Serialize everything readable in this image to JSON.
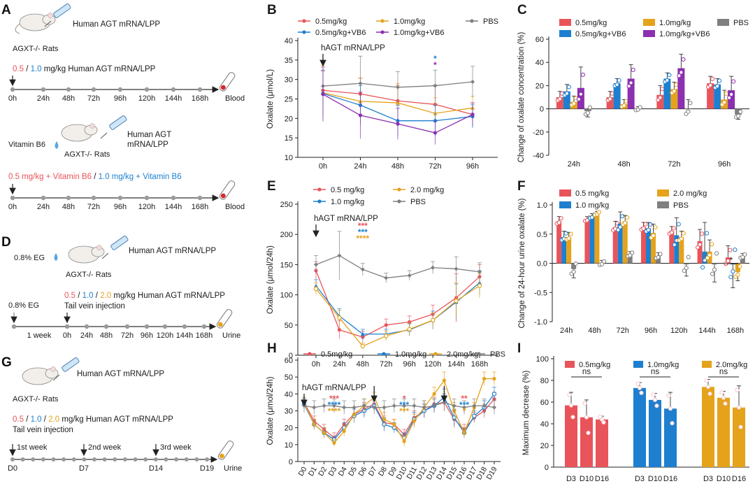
{
  "colors": {
    "red": "#e8545a",
    "blue": "#1e7fd0",
    "orange": "#e5a21b",
    "purple": "#8c2fb0",
    "gray": "#7f7f7f",
    "text": "#1a1a1a"
  },
  "panels": {
    "A": {
      "letter": "A",
      "schematic1": {
        "product": "Human AGT mRNA/LPP",
        "animal": "AGXT-/- Rats",
        "dose_1": "0.5",
        "sep": " / ",
        "dose_2": "1.0",
        "dose_suffix": " mg/kg Human AGT mRNA/LPP",
        "timepoints": [
          "0h",
          "24h",
          "48h",
          "72h",
          "96h",
          "120h",
          "144h",
          "168h"
        ],
        "sample": "Blood"
      },
      "schematic2": {
        "supplement": "Vitamin B6",
        "product_l1": "Human AGT",
        "product_l2": "mRNA/LPP",
        "animal": "AGXT-/- Rats",
        "dose_1": "0.5 mg/kg + Vitamin B6",
        "sep": " / ",
        "dose_2": "1.0 mg/kg + Vitamin B6",
        "timepoints": [
          "0h",
          "24h",
          "48h",
          "72h",
          "96h",
          "120h",
          "144h",
          "168h"
        ],
        "sample": "Blood"
      }
    },
    "D": {
      "letter": "D",
      "eg": "0.8% EG",
      "product": "Human AGT mRNA/LPP",
      "animal": "AGXT-/- Rats",
      "dose_1": "0.5",
      "sep1": " / ",
      "dose_2": "1.0",
      "sep2": " / ",
      "dose_3": "2.0",
      "dose_suffix": " mg/kg Human AGT mRNA/LPP",
      "route": "Tail vein injection",
      "eg_timeline": "0.8% EG",
      "week_label": "1 week",
      "timepoints": [
        "0h",
        "24h",
        "48h",
        "72h",
        "96h",
        "120h",
        "144h",
        "168h"
      ],
      "sample": "Urine"
    },
    "G": {
      "letter": "G",
      "product": "Human AGT mRNA/LPP",
      "animal": "AGXT-/- Rats",
      "dose_1": "0.5",
      "sep1": " / ",
      "dose_2": "1.0",
      "sep2": " / ",
      "dose_3": "2.0",
      "dose_suffix": " mg/kg Human AGT mRNA/LPP",
      "route": "Tail vein injection",
      "weeks": [
        "1st week",
        "2nd week",
        "3rd week"
      ],
      "days": [
        "D0",
        "D7",
        "D14",
        "D19"
      ],
      "sample": "Urine"
    }
  },
  "chart_data": [
    {
      "id": "B",
      "type": "line",
      "letter": "B",
      "ylabel": "Oxalate (μmol/L)",
      "ylim": [
        10,
        40
      ],
      "yticks": [
        10,
        15,
        20,
        25,
        30,
        35,
        40
      ],
      "categories": [
        "0h",
        "24h",
        "48h",
        "72h",
        "96h"
      ],
      "annotation": "hAGT mRNA/LPP",
      "stars": [
        {
          "x": "72h",
          "color": "blue",
          "text": "*"
        },
        {
          "x": "72h",
          "color": "purple",
          "text": "*"
        }
      ],
      "legend": [
        [
          "0.5mg/kg",
          "red"
        ],
        [
          "1.0mg/kg",
          "orange"
        ],
        [
          "PBS",
          "gray"
        ],
        [
          "0.5mg/kg+VB6",
          "blue"
        ],
        [
          "1.0mg/kg+VB6",
          "purple"
        ]
      ],
      "series": [
        {
          "name": "0.5mg/kg",
          "color": "red",
          "values": [
            27.2,
            26.3,
            24.5,
            23.6,
            21.0
          ],
          "err": [
            5,
            4,
            4,
            5,
            3
          ]
        },
        {
          "name": "1.0mg/kg",
          "color": "orange",
          "values": [
            26.6,
            24.4,
            24.0,
            21.3,
            22.7
          ],
          "err": [
            7,
            6,
            5,
            4,
            3
          ]
        },
        {
          "name": "PBS",
          "color": "gray",
          "values": [
            28.3,
            29.0,
            28.0,
            28.4,
            29.4
          ],
          "err": [
            6,
            7,
            4,
            4,
            4
          ]
        },
        {
          "name": "0.5mg/kg+VB6",
          "color": "blue",
          "values": [
            26.4,
            23.4,
            19.4,
            19.4,
            20.5
          ],
          "err": [
            6,
            5,
            4,
            4,
            3
          ]
        },
        {
          "name": "1.0mg/kg+VB6",
          "color": "purple",
          "values": [
            26.2,
            20.8,
            18.6,
            16.3,
            21.0
          ],
          "err": [
            7,
            6,
            4,
            3,
            3
          ]
        }
      ]
    },
    {
      "id": "C",
      "type": "bar",
      "letter": "C",
      "ylabel": "Change of oxalate concentration (%)",
      "ylim": [
        -40,
        60
      ],
      "yticks": [
        -40,
        -20,
        0,
        20,
        40,
        60
      ],
      "categories": [
        "24h",
        "48h",
        "72h",
        "96h"
      ],
      "legend": [
        [
          "0.5mg/kg",
          "red"
        ],
        [
          "1.0mg/kg",
          "orange"
        ],
        [
          "PBS",
          "gray"
        ],
        [
          "0.5mg/kg+VB6",
          "blue"
        ],
        [
          "1.0mg/kg+VB6",
          "purple"
        ]
      ],
      "series": [
        {
          "name": "0.5mg/kg",
          "color": "red",
          "values": [
            10,
            10,
            12,
            22
          ],
          "err": [
            5,
            5,
            8,
            6
          ]
        },
        {
          "name": "0.5mg/kg+VB6",
          "color": "blue",
          "values": [
            15,
            22,
            26,
            21
          ],
          "err": [
            6,
            4,
            5,
            5
          ]
        },
        {
          "name": "1.0mg/kg",
          "color": "orange",
          "values": [
            6,
            4,
            17,
            8
          ],
          "err": [
            5,
            4,
            6,
            8
          ]
        },
        {
          "name": "1.0mg/kg+VB6",
          "color": "purple",
          "values": [
            18,
            26,
            35,
            16
          ],
          "err": [
            18,
            12,
            12,
            12
          ]
        },
        {
          "name": "PBS",
          "color": "gray",
          "values": [
            -2,
            0,
            0,
            -5
          ],
          "err": [
            5,
            2,
            8,
            4
          ]
        }
      ]
    },
    {
      "id": "E",
      "type": "line",
      "letter": "E",
      "ylabel": "Oxalate (μmol/24h)",
      "ylim": [
        0,
        250
      ],
      "yticks": [
        0,
        50,
        100,
        150,
        200,
        250
      ],
      "categories": [
        "0h",
        "24h",
        "48h",
        "72h",
        "96h",
        "120h",
        "144h",
        "168h"
      ],
      "annotation": "hAGT mRNA/LPP",
      "stars": [
        {
          "x": "48h",
          "color": "red",
          "text": "***"
        },
        {
          "x": "48h",
          "color": "blue",
          "text": "***"
        },
        {
          "x": "48h",
          "color": "orange",
          "text": "****"
        }
      ],
      "legend": [
        [
          "0.5 mg/kg",
          "red"
        ],
        [
          "2.0 mg/kg",
          "orange"
        ],
        [
          "1.0 mg/kg",
          "blue"
        ],
        [
          "PBS",
          "gray"
        ]
      ],
      "series": [
        {
          "name": "0.5 mg/kg",
          "color": "red",
          "values": [
            140,
            42,
            30,
            50,
            55,
            68,
            95,
            130
          ],
          "err": [
            15,
            15,
            10,
            10,
            10,
            15,
            40,
            20
          ]
        },
        {
          "name": "1.0 mg/kg",
          "color": "blue",
          "values": [
            115,
            65,
            35,
            35,
            42,
            58,
            88,
            120
          ],
          "err": [
            10,
            12,
            8,
            8,
            10,
            15,
            30,
            20
          ]
        },
        {
          "name": "2.0 mg/kg",
          "color": "orange",
          "values": [
            110,
            62,
            15,
            32,
            43,
            58,
            90,
            115
          ],
          "err": [
            10,
            12,
            5,
            8,
            10,
            12,
            30,
            20
          ]
        },
        {
          "name": "PBS",
          "color": "gray",
          "values": [
            150,
            165,
            142,
            128,
            132,
            145,
            143,
            138
          ],
          "err": [
            15,
            40,
            10,
            8,
            8,
            10,
            20,
            15
          ]
        }
      ]
    },
    {
      "id": "F",
      "type": "bar",
      "letter": "F",
      "ylabel": "Change of 24-hour urine oxalate (%)",
      "ylim": [
        -1.0,
        1.0
      ],
      "yticks": [
        -1.0,
        -0.5,
        0.0,
        0.5,
        1.0
      ],
      "categories": [
        "24h",
        "48h",
        "72h",
        "96h",
        "120h",
        "144h",
        "168h"
      ],
      "sig": "*",
      "legend": [
        [
          "0.5 mg/kg",
          "red"
        ],
        [
          "2.0 mg/kg",
          "orange"
        ],
        [
          "1.0 mg/kg",
          "blue"
        ],
        [
          "PBS",
          "gray"
        ]
      ],
      "series": [
        {
          "name": "0.5 mg/kg",
          "color": "red",
          "values": [
            0.72,
            0.75,
            0.62,
            0.62,
            0.55,
            0.38,
            0.1
          ],
          "err": [
            0.08,
            0.05,
            0.1,
            0.08,
            0.08,
            0.2,
            0.2
          ]
        },
        {
          "name": "1.0 mg/kg",
          "color": "blue",
          "values": [
            0.45,
            0.8,
            0.68,
            0.6,
            0.48,
            0.2,
            -0.02
          ],
          "err": [
            0.1,
            0.05,
            0.2,
            0.1,
            0.3,
            0.5,
            0.4
          ]
        },
        {
          "name": "2.0 mg/kg",
          "color": "orange",
          "values": [
            0.45,
            0.85,
            0.72,
            0.52,
            0.45,
            0.2,
            -0.15
          ],
          "err": [
            0.08,
            0.04,
            0.1,
            0.15,
            0.1,
            0.2,
            0.15
          ]
        },
        {
          "name": "PBS",
          "color": "gray",
          "values": [
            -0.1,
            0,
            0.15,
            0.12,
            -0.02,
            -0.02,
            0.12
          ],
          "err": [
            0.15,
            0.05,
            0.05,
            0.06,
            0.2,
            0.3,
            0.05
          ]
        }
      ]
    },
    {
      "id": "H",
      "type": "line",
      "letter": "H",
      "ylabel": "Oxalate (μmol/24h)",
      "ylim": [
        0,
        60
      ],
      "yticks": [
        0,
        10,
        20,
        30,
        40,
        50,
        60
      ],
      "categories": [
        "D0",
        "D1",
        "D2",
        "D3",
        "D4",
        "D5",
        "D6",
        "D7",
        "D8",
        "D9",
        "D10",
        "D11",
        "D12",
        "D13",
        "D14",
        "D15",
        "D16",
        "D17",
        "D18",
        "D19"
      ],
      "annotation": "hAGT mRNA/LPP",
      "stars": [
        {
          "x": "D3",
          "color": "red",
          "text": "***"
        },
        {
          "x": "D3",
          "color": "blue",
          "text": "****"
        },
        {
          "x": "D3",
          "color": "orange",
          "text": "****"
        },
        {
          "x": "D10",
          "color": "red",
          "text": "*"
        },
        {
          "x": "D10",
          "color": "blue",
          "text": "***"
        },
        {
          "x": "D10",
          "color": "orange",
          "text": "***"
        },
        {
          "x": "D16",
          "color": "red",
          "text": "**"
        },
        {
          "x": "D16",
          "color": "blue",
          "text": "***"
        },
        {
          "x": "D16",
          "color": "orange",
          "text": "*"
        }
      ],
      "legend": [
        [
          "0.5mg/kg",
          "red"
        ],
        [
          "1.0mg/kg",
          "blue"
        ],
        [
          "2.0mg/kg",
          "orange"
        ],
        [
          "PBS",
          "gray"
        ]
      ],
      "series": [
        {
          "name": "0.5mg/kg",
          "color": "red",
          "values": [
            35,
            24,
            19,
            14,
            22,
            28,
            31,
            34,
            23,
            22,
            16,
            26,
            30,
            34,
            35,
            25,
            19,
            26,
            30,
            37
          ],
          "err": [
            3,
            3,
            3,
            3,
            3,
            4,
            4,
            3,
            4,
            3,
            3,
            4,
            4,
            4,
            5,
            5,
            3,
            3,
            4,
            4
          ]
        },
        {
          "name": "1.0mg/kg",
          "color": "blue",
          "values": [
            34,
            22,
            17,
            13,
            20,
            27,
            30,
            33,
            22,
            20,
            14,
            25,
            30,
            33,
            38,
            26,
            17,
            27,
            32,
            40
          ],
          "err": [
            3,
            3,
            3,
            2,
            3,
            4,
            4,
            3,
            4,
            3,
            3,
            4,
            4,
            4,
            5,
            5,
            3,
            3,
            4,
            4
          ]
        },
        {
          "name": "2.0mg/kg",
          "color": "orange",
          "values": [
            35,
            22,
            17,
            11,
            18,
            28,
            33,
            38,
            25,
            22,
            12,
            24,
            32,
            40,
            48,
            30,
            17,
            32,
            49,
            49
          ],
          "err": [
            3,
            3,
            3,
            2,
            3,
            4,
            4,
            3,
            4,
            3,
            3,
            4,
            4,
            4,
            5,
            5,
            3,
            3,
            4,
            4
          ]
        },
        {
          "name": "PBS",
          "color": "gray",
          "values": [
            33,
            32,
            33,
            33,
            32,
            32,
            33,
            32,
            32,
            33,
            33,
            33,
            32,
            33,
            35,
            33,
            32,
            33,
            33,
            32
          ],
          "err": [
            4,
            4,
            4,
            4,
            4,
            4,
            4,
            4,
            4,
            4,
            4,
            4,
            4,
            4,
            5,
            4,
            4,
            4,
            4,
            4
          ]
        }
      ]
    },
    {
      "id": "I",
      "type": "bar",
      "letter": "I",
      "ylabel": "Maximum decrease (%)",
      "ylim": [
        0,
        100
      ],
      "yticks": [
        0,
        20,
        40,
        60,
        80,
        100
      ],
      "sig": "ns",
      "groups": [
        {
          "name": "0.5mg/kg",
          "color": "red",
          "categories": [
            "D3",
            "D10",
            "D16"
          ],
          "values": [
            57,
            46,
            44
          ],
          "err": [
            12,
            16,
            3
          ]
        },
        {
          "name": "1.0mg/kg",
          "color": "blue",
          "categories": [
            "D3",
            "D10",
            "D16"
          ],
          "values": [
            73,
            62,
            54
          ],
          "err": [
            5,
            6,
            15
          ]
        },
        {
          "name": "2.0mg/kg",
          "color": "orange",
          "categories": [
            "D3",
            "D10",
            "D16"
          ],
          "values": [
            74,
            64,
            55
          ],
          "err": [
            7,
            6,
            20
          ]
        }
      ]
    }
  ]
}
